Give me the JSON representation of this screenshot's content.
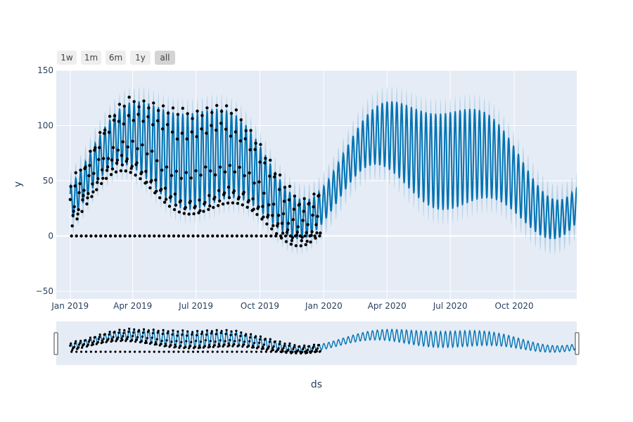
{
  "range_selector": {
    "buttons": [
      {
        "label": "1w",
        "active": false
      },
      {
        "label": "1m",
        "active": false
      },
      {
        "label": "6m",
        "active": false
      },
      {
        "label": "1y",
        "active": false
      },
      {
        "label": "all",
        "active": true
      }
    ]
  },
  "chart_data": {
    "type": "line",
    "title": "",
    "xlabel": "ds",
    "ylabel": "y",
    "ylim": [
      -57,
      150
    ],
    "xlim_days": [
      -20,
      729
    ],
    "x_ticks": [
      {
        "label": "Jan 2019",
        "day": 0
      },
      {
        "label": "Apr 2019",
        "day": 90
      },
      {
        "label": "Jul 2019",
        "day": 181
      },
      {
        "label": "Oct 2019",
        "day": 273
      },
      {
        "label": "Jan 2020",
        "day": 365
      },
      {
        "label": "Apr 2020",
        "day": 456
      },
      {
        "label": "Jul 2020",
        "day": 547
      },
      {
        "label": "Oct 2020",
        "day": 639
      }
    ],
    "y_ticks": [
      {
        "label": "150",
        "value": 150
      },
      {
        "label": "100",
        "value": 100
      },
      {
        "label": "50",
        "value": 50
      },
      {
        "label": "0",
        "value": 0
      },
      {
        "label": "−50",
        "value": -50
      }
    ],
    "observed_range_days": [
      0,
      360
    ],
    "forecast_range_days": [
      0,
      729
    ],
    "series": [
      {
        "name": "yhat",
        "color": "#0072B2",
        "description": "forecast with weekly seasonality"
      },
      {
        "name": "yhat_interval",
        "color": "#0072B2",
        "description": "uncertainty band"
      },
      {
        "name": "actual",
        "color": "#000000",
        "description": "observed points"
      }
    ],
    "rangeslider": true
  }
}
